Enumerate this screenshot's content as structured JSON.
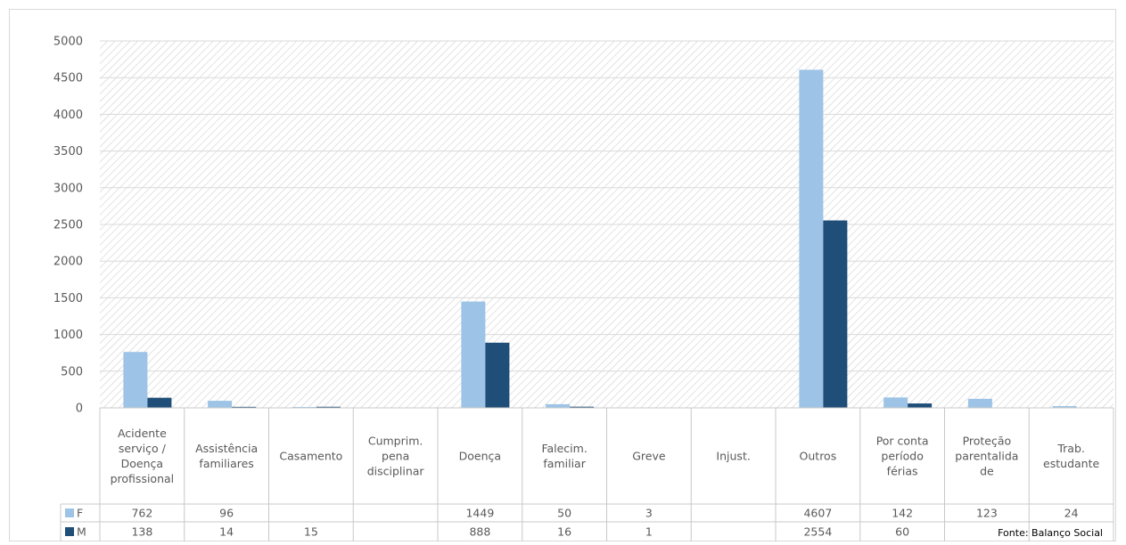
{
  "chart_data": {
    "type": "bar",
    "categories": [
      [
        "Acidente",
        "serviço /",
        "Doença",
        "profissional"
      ],
      [
        "Assistência",
        "familiares"
      ],
      [
        "Casamento"
      ],
      [
        "Cumprim.",
        "pena",
        "disciplinar"
      ],
      [
        "Doença"
      ],
      [
        "Falecim.",
        "familiar"
      ],
      [
        "Greve"
      ],
      [
        "Injust."
      ],
      [
        "Outros"
      ],
      [
        "Por conta",
        "período",
        "férias"
      ],
      [
        "Proteção",
        "parentalida",
        "de"
      ],
      [
        "Trab.",
        "estudante"
      ]
    ],
    "series": [
      {
        "name": "F",
        "color": "#9dc3e6",
        "values": [
          762,
          96,
          12,
          0,
          1449,
          50,
          3,
          0,
          4607,
          142,
          123,
          24
        ],
        "labels": [
          "762",
          "96",
          "",
          "",
          "1449",
          "50",
          "3",
          "",
          "4607",
          "142",
          "123",
          "24"
        ]
      },
      {
        "name": "M",
        "color": "#1f4e79",
        "values": [
          138,
          14,
          15,
          0,
          888,
          16,
          1,
          0,
          2554,
          60,
          0,
          0
        ],
        "labels": [
          "138",
          "14",
          "15",
          "",
          "888",
          "16",
          "1",
          "",
          "2554",
          "60",
          "",
          ""
        ]
      }
    ],
    "yticks": [
      "0",
      "500",
      "1000",
      "1500",
      "2000",
      "2500",
      "3000",
      "3500",
      "4000",
      "4500",
      "5000"
    ],
    "ylim": [
      0,
      5000
    ],
    "grid": true,
    "legend": "data-table"
  },
  "source_note": "Fonte: Balanço Social"
}
